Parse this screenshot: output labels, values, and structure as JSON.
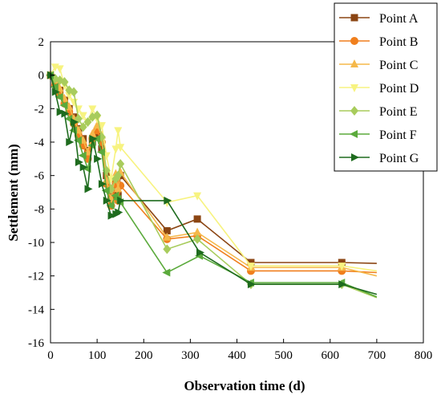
{
  "chart_data": {
    "type": "line",
    "xlabel": "Observation time (d)",
    "ylabel": "Settlement (mm)",
    "xlim": [
      0,
      800
    ],
    "ylim": [
      -16,
      2
    ],
    "xticks": [
      0,
      100,
      200,
      300,
      400,
      500,
      600,
      700,
      800
    ],
    "yticks": [
      -16,
      -14,
      -12,
      -10,
      -8,
      -6,
      -4,
      -2,
      0,
      2
    ],
    "grid": false,
    "legend_position": "top-right",
    "series": [
      {
        "name": "Point A",
        "color": "#8B4513",
        "marker": "square",
        "x": [
          0,
          10,
          20,
          30,
          40,
          50,
          60,
          70,
          80,
          90,
          100,
          110,
          120,
          130,
          140,
          145,
          150,
          250,
          315,
          430,
          625
        ],
        "y": [
          0,
          -0.4,
          -0.9,
          -1.5,
          -2.0,
          -2.5,
          -3.2,
          -3.8,
          -4.5,
          -4.0,
          -3.6,
          -4.4,
          -6.0,
          -7.2,
          -6.4,
          -7.2,
          -6.0,
          -9.3,
          -8.6,
          -11.2,
          -11.2
        ],
        "line_to": [
          700,
          -11.25
        ]
      },
      {
        "name": "Point B",
        "color": "#F07F1D",
        "marker": "circle",
        "x": [
          0,
          10,
          20,
          30,
          40,
          50,
          60,
          70,
          80,
          90,
          100,
          110,
          120,
          130,
          140,
          145,
          150,
          250,
          315,
          430,
          625
        ],
        "y": [
          0,
          -0.6,
          -1.2,
          -1.7,
          -2.2,
          -2.9,
          -3.6,
          -4.2,
          -5.0,
          -3.8,
          -3.3,
          -4.0,
          -6.5,
          -7.8,
          -6.5,
          -7.5,
          -6.6,
          -9.8,
          -9.6,
          -11.7,
          -11.7
        ],
        "line_to": [
          700,
          -11.8
        ]
      },
      {
        "name": "Point C",
        "color": "#F5B84A",
        "marker": "triangle-up",
        "x": [
          0,
          10,
          20,
          30,
          40,
          50,
          60,
          70,
          80,
          90,
          100,
          110,
          120,
          130,
          140,
          145,
          150,
          250,
          315,
          430,
          625
        ],
        "y": [
          0,
          -0.3,
          -0.8,
          -1.4,
          -1.9,
          -2.6,
          -3.3,
          -3.9,
          -4.6,
          -3.5,
          -3.0,
          -3.6,
          -6.3,
          -7.4,
          -5.9,
          -6.8,
          -5.8,
          -9.7,
          -9.4,
          -11.5,
          -11.5
        ],
        "line_to": [
          700,
          -12.0
        ]
      },
      {
        "name": "Point D",
        "color": "#F7F380",
        "marker": "triangle-down",
        "x": [
          0,
          10,
          20,
          30,
          40,
          50,
          60,
          70,
          80,
          90,
          100,
          110,
          120,
          130,
          140,
          145,
          150,
          250,
          315,
          430,
          625
        ],
        "y": [
          0,
          0.5,
          0.4,
          -0.6,
          -1.2,
          -1.6,
          -2.0,
          -2.4,
          -2.8,
          -2.0,
          -2.6,
          -3.0,
          -4.8,
          -6.2,
          -4.4,
          -3.3,
          -4.3,
          -7.6,
          -7.2,
          -11.4,
          -11.4
        ],
        "line_to": [
          700,
          -11.7
        ]
      },
      {
        "name": "Point E",
        "color": "#A8CC5C",
        "marker": "diamond",
        "x": [
          0,
          10,
          20,
          30,
          40,
          50,
          60,
          70,
          80,
          90,
          100,
          110,
          120,
          130,
          140,
          145,
          150,
          250,
          315,
          430,
          625
        ],
        "y": [
          0,
          -0.2,
          -0.3,
          -0.4,
          -0.9,
          -1.0,
          -2.6,
          -3.1,
          -2.8,
          -2.5,
          -2.4,
          -3.7,
          -5.7,
          -6.8,
          -6.2,
          -6.0,
          -5.3,
          -10.4,
          -9.8,
          -12.5,
          -12.5
        ],
        "line_to": [
          700,
          -13.3
        ]
      },
      {
        "name": "Point F",
        "color": "#5BAA3C",
        "marker": "triangle-left",
        "x": [
          0,
          10,
          20,
          30,
          40,
          50,
          60,
          70,
          80,
          90,
          100,
          110,
          120,
          130,
          140,
          145,
          150,
          250,
          320,
          430,
          625
        ],
        "y": [
          0,
          -0.7,
          -1.3,
          -1.8,
          -2.6,
          -3.3,
          -3.9,
          -4.8,
          -5.6,
          -4.2,
          -3.8,
          -4.6,
          -6.9,
          -7.8,
          -7.2,
          -7.4,
          -7.6,
          -11.8,
          -10.8,
          -12.4,
          -12.4
        ],
        "line_to": [
          700,
          -13.25
        ]
      },
      {
        "name": "Point G",
        "color": "#1E6B1E",
        "marker": "triangle-right",
        "x": [
          0,
          10,
          20,
          30,
          40,
          50,
          60,
          70,
          80,
          90,
          100,
          110,
          120,
          130,
          140,
          145,
          150,
          250,
          320,
          430,
          625
        ],
        "y": [
          0,
          -1.0,
          -2.2,
          -2.3,
          -4.0,
          -2.8,
          -5.2,
          -5.5,
          -6.8,
          -3.8,
          -5.0,
          -6.5,
          -7.5,
          -8.4,
          -8.3,
          -8.2,
          -7.5,
          -7.5,
          -10.6,
          -12.5,
          -12.5
        ],
        "line_to": [
          700,
          -13.1
        ]
      }
    ]
  }
}
